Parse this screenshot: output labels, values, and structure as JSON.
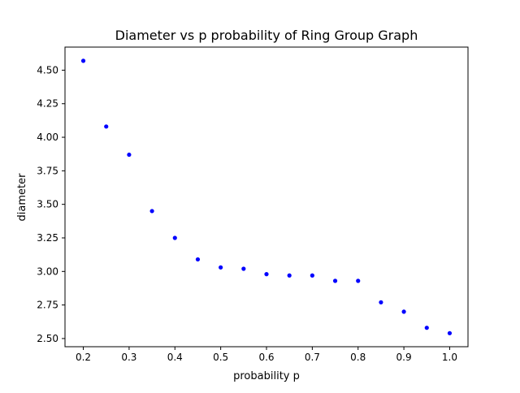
{
  "chart_data": {
    "type": "scatter",
    "title": "Diameter vs p probability of Ring Group Graph",
    "xlabel": "probability p",
    "ylabel": "diameter",
    "x": [
      0.2,
      0.25,
      0.3,
      0.35,
      0.4,
      0.45,
      0.5,
      0.55,
      0.6,
      0.65,
      0.7,
      0.75,
      0.8,
      0.85,
      0.9,
      0.95,
      1.0
    ],
    "series": [
      {
        "values": [
          4.57,
          4.08,
          3.87,
          3.45,
          3.25,
          3.09,
          3.03,
          3.02,
          2.98,
          2.97,
          2.97,
          2.93,
          2.93,
          2.77,
          2.7,
          2.58,
          2.54
        ],
        "color": "#0000ff"
      }
    ],
    "xlim": [
      0.16,
      1.04
    ],
    "ylim": [
      2.439,
      4.672
    ],
    "xticks": [
      "0.2",
      "0.3",
      "0.4",
      "0.5",
      "0.6",
      "0.7",
      "0.8",
      "0.9",
      "1.0"
    ],
    "yticks": [
      "2.50",
      "2.75",
      "3.00",
      "3.25",
      "3.50",
      "3.75",
      "4.00",
      "4.25",
      "4.50"
    ],
    "grid": false,
    "legend": "none"
  }
}
